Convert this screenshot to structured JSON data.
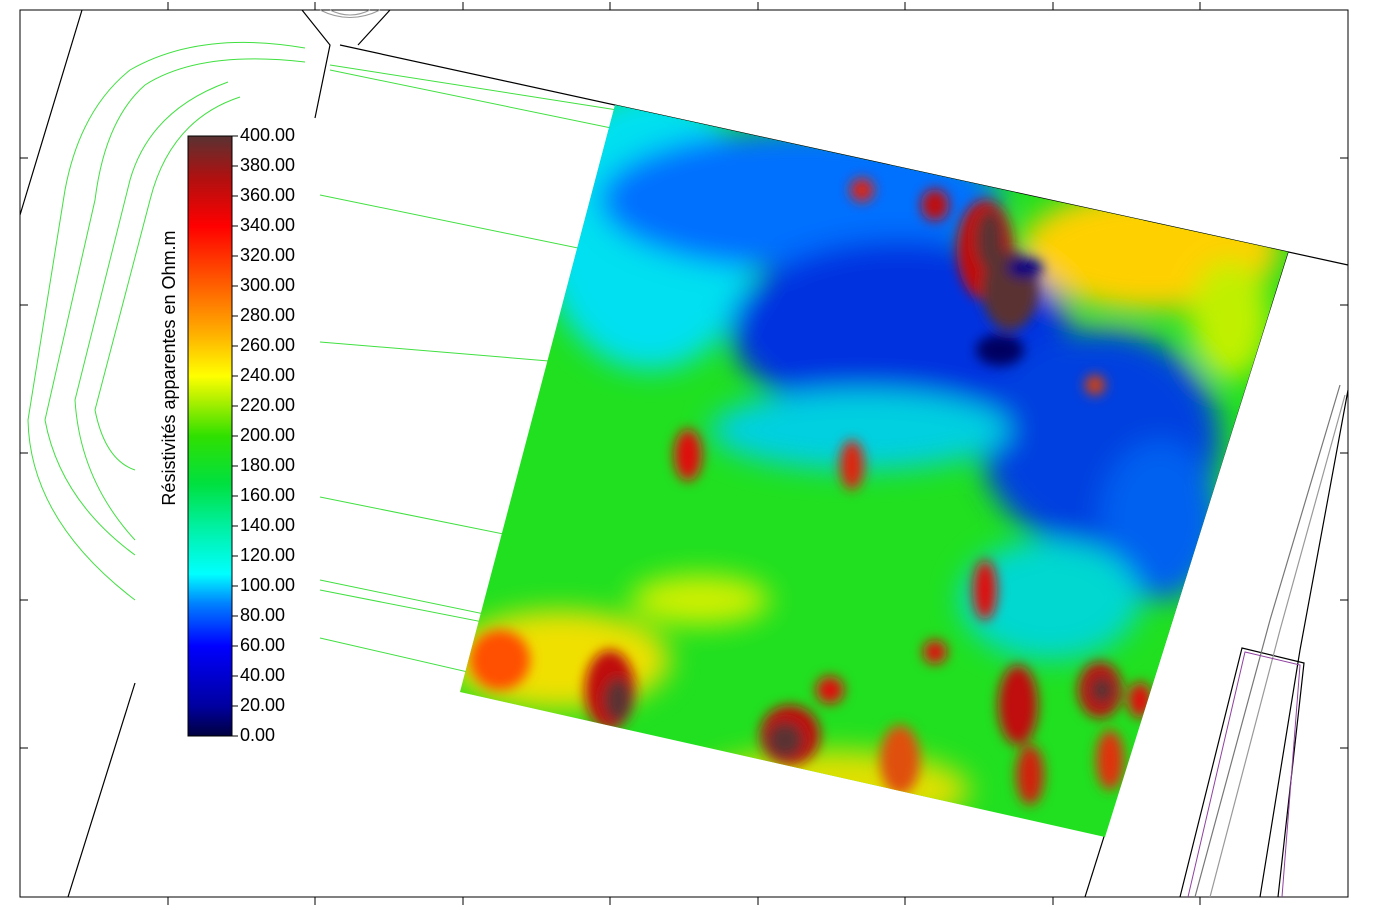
{
  "colorbar": {
    "label": "Résistivités apparentes en Ohm.m",
    "range": [
      0,
      400
    ],
    "ticks": [
      {
        "value": 0,
        "label": "0.00"
      },
      {
        "value": 20,
        "label": "20.00"
      },
      {
        "value": 40,
        "label": "40.00"
      },
      {
        "value": 60,
        "label": "60.00"
      },
      {
        "value": 80,
        "label": "80.00"
      },
      {
        "value": 100,
        "label": "100.00"
      },
      {
        "value": 120,
        "label": "120.00"
      },
      {
        "value": 140,
        "label": "140.00"
      },
      {
        "value": 160,
        "label": "160.00"
      },
      {
        "value": 180,
        "label": "180.00"
      },
      {
        "value": 200,
        "label": "200.00"
      },
      {
        "value": 220,
        "label": "220.00"
      },
      {
        "value": 240,
        "label": "240.00"
      },
      {
        "value": 260,
        "label": "260.00"
      },
      {
        "value": 280,
        "label": "280.00"
      },
      {
        "value": 300,
        "label": "300.00"
      },
      {
        "value": 320,
        "label": "320.00"
      },
      {
        "value": 340,
        "label": "340.00"
      },
      {
        "value": 360,
        "label": "360.00"
      },
      {
        "value": 380,
        "label": "380.00"
      },
      {
        "value": 400,
        "label": "400.00"
      }
    ]
  }
}
